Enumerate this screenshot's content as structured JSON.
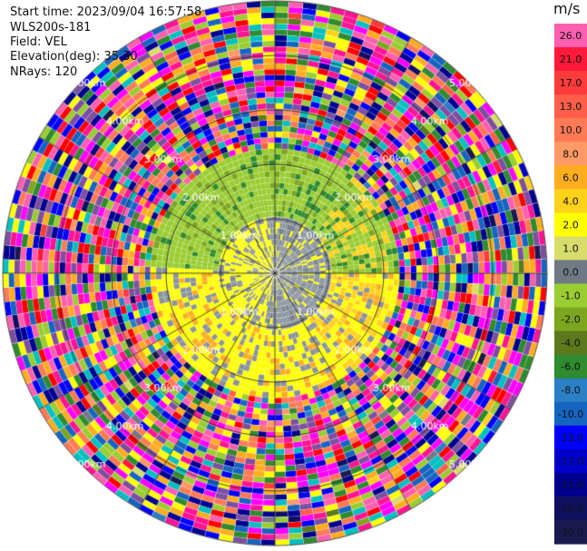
{
  "header": {
    "start_time": "Start time: 2023/09/04 16:57:58",
    "instrument": "WLS200s-181",
    "field": "Field: VEL",
    "elevation": "Elevation(deg): 35.30",
    "nrays": "NRays: 120"
  },
  "range_rings": [
    "1.00km",
    "2.00km",
    "3.00km",
    "4.00km",
    "5.00km"
  ],
  "colorbar": {
    "unit": "m/s",
    "levels": [
      {
        "label": "26.0",
        "color": "#ff5fb0"
      },
      {
        "label": "21.0",
        "color": "#ff1a3a"
      },
      {
        "label": "17.0",
        "color": "#ff3b3b"
      },
      {
        "label": "13.0",
        "color": "#ff5e4a"
      },
      {
        "label": "10.0",
        "color": "#ff7a55"
      },
      {
        "label": "8.0",
        "color": "#ff9966"
      },
      {
        "label": "6.0",
        "color": "#ffad1f"
      },
      {
        "label": "4.0",
        "color": "#ffd21a"
      },
      {
        "label": "2.0",
        "color": "#ffff00"
      },
      {
        "label": "1.0",
        "color": "#d8dc6a"
      },
      {
        "label": "0.0",
        "color": "#707a84"
      },
      {
        "label": "-1.0",
        "color": "#9acd32"
      },
      {
        "label": "-2.0",
        "color": "#7da61f"
      },
      {
        "label": "-4.0",
        "color": "#5c7a1c"
      },
      {
        "label": "-6.0",
        "color": "#2e8b2e"
      },
      {
        "label": "-8.0",
        "color": "#2b7fc4"
      },
      {
        "label": "-10.0",
        "color": "#1565c0"
      },
      {
        "label": "-13.0",
        "color": "#0000ff"
      },
      {
        "label": "-17.0",
        "color": "#0000cd"
      },
      {
        "label": "-21.0",
        "color": "#000090"
      },
      {
        "label": "-26.0",
        "color": "#101060"
      },
      {
        "label": "-30.0",
        "color": "#1a1a50"
      }
    ]
  }
}
